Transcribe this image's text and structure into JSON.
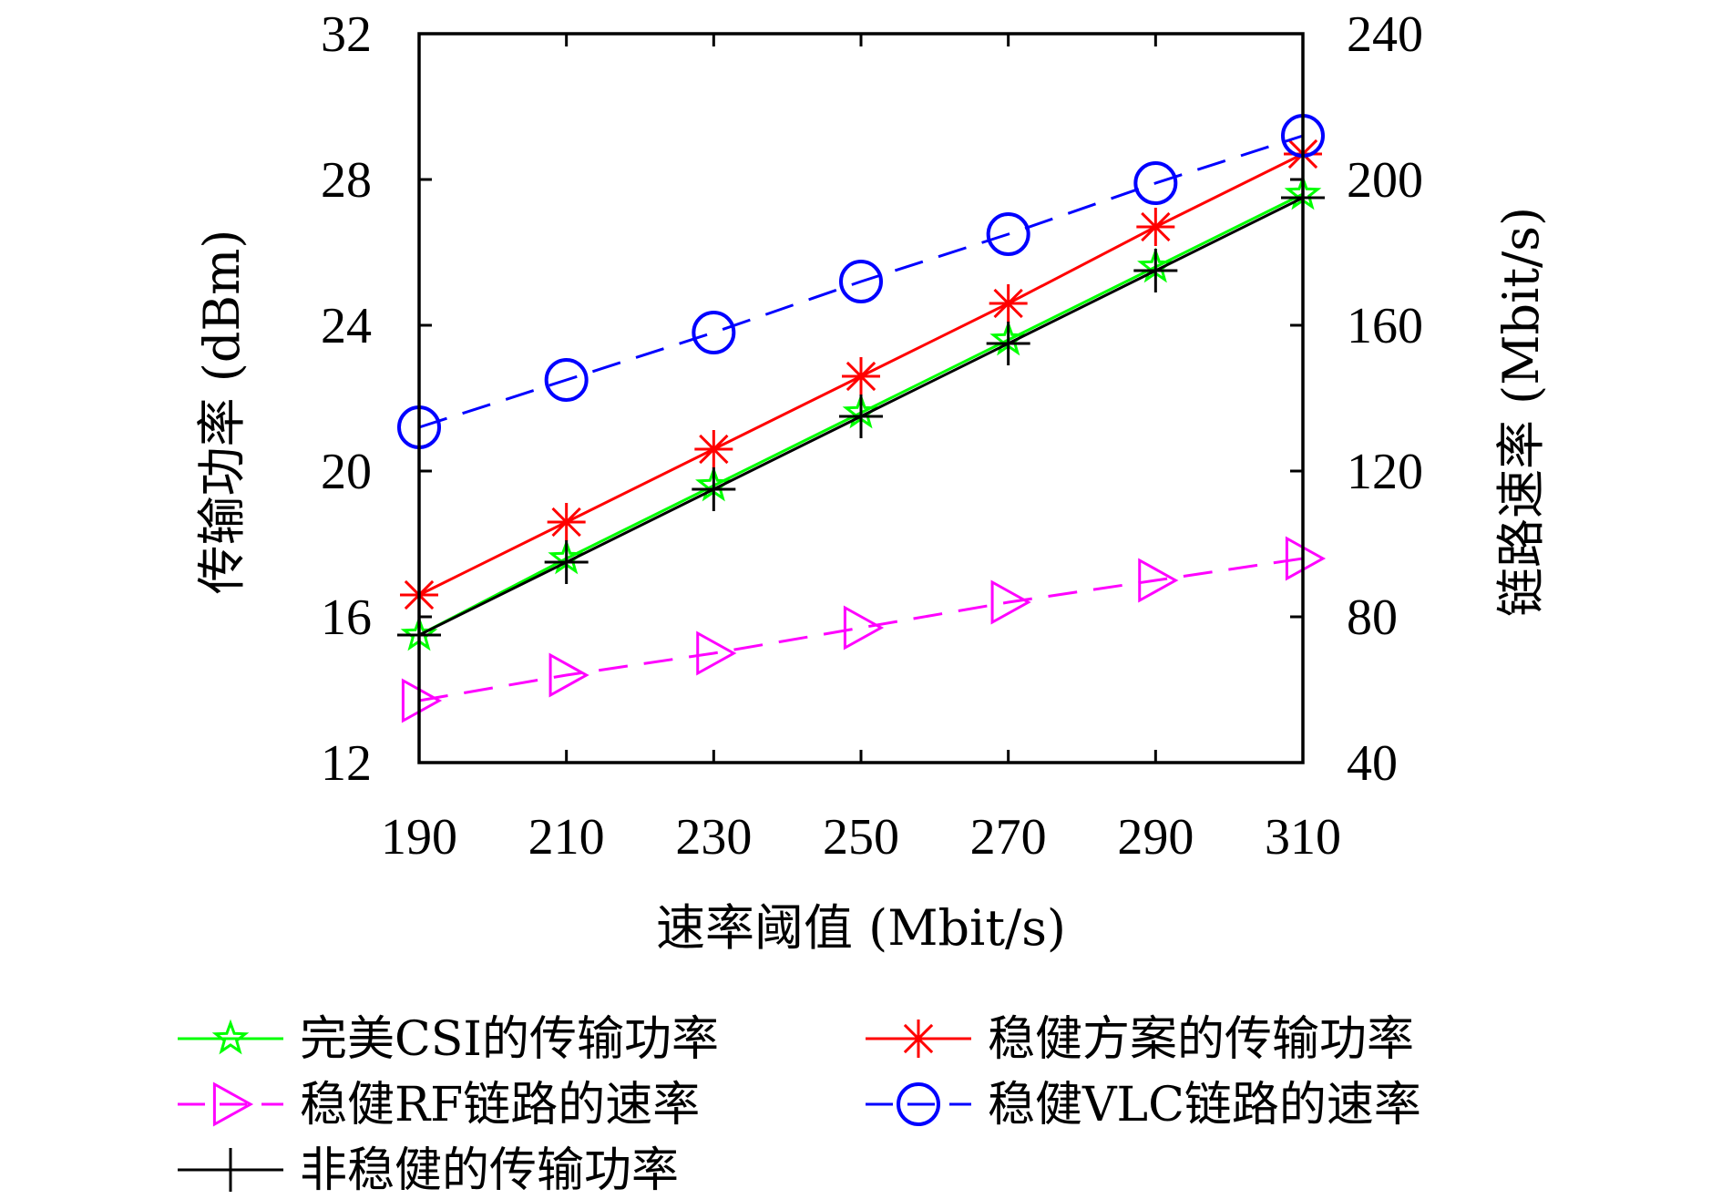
{
  "chart_data": {
    "type": "line",
    "xlabel": "速率阈值 (Mbit/s)",
    "ylabel_left": "传输功率 (dBm)",
    "ylabel_right": "链路速率 (Mbit/s)",
    "x": [
      190,
      210,
      230,
      250,
      270,
      290,
      310
    ],
    "xlim": [
      190,
      310
    ],
    "x_ticks": [
      "190",
      "210",
      "230",
      "250",
      "270",
      "290",
      "310"
    ],
    "ylim_left": [
      12,
      32
    ],
    "y_ticks_left": [
      "12",
      "16",
      "20",
      "24",
      "28",
      "32"
    ],
    "ylim_right": [
      40,
      240
    ],
    "y_ticks_right": [
      "40",
      "80",
      "120",
      "160",
      "200",
      "240"
    ],
    "grid": false,
    "legend_position": "bottom",
    "series": [
      {
        "name": "完美CSI的传输功率",
        "axis": "left",
        "values": [
          15.5,
          17.6,
          19.6,
          21.6,
          23.6,
          25.6,
          27.6
        ],
        "color": "#00ff00",
        "marker": "star",
        "dash": "solid"
      },
      {
        "name": "稳健方案的传输功率",
        "axis": "left",
        "values": [
          16.6,
          18.6,
          20.6,
          22.6,
          24.6,
          26.7,
          28.7
        ],
        "color": "#ff0000",
        "marker": "asterisk",
        "dash": "solid"
      },
      {
        "name": "稳健RF链路的速率",
        "axis": "right",
        "values": [
          57,
          64,
          70,
          77,
          84,
          90,
          96
        ],
        "color": "#ff00ff",
        "marker": "triangle-right",
        "dash": "dashed"
      },
      {
        "name": "稳健VLC链路的速率",
        "axis": "right",
        "values": [
          132,
          145,
          158,
          172,
          185,
          199,
          212
        ],
        "color": "#0000ff",
        "marker": "circle",
        "dash": "dashed"
      },
      {
        "name": "非稳健的传输功率",
        "axis": "left",
        "values": [
          15.5,
          17.5,
          19.5,
          21.5,
          23.5,
          25.5,
          27.5
        ],
        "color": "#000000",
        "marker": "plus",
        "dash": "solid"
      }
    ]
  }
}
